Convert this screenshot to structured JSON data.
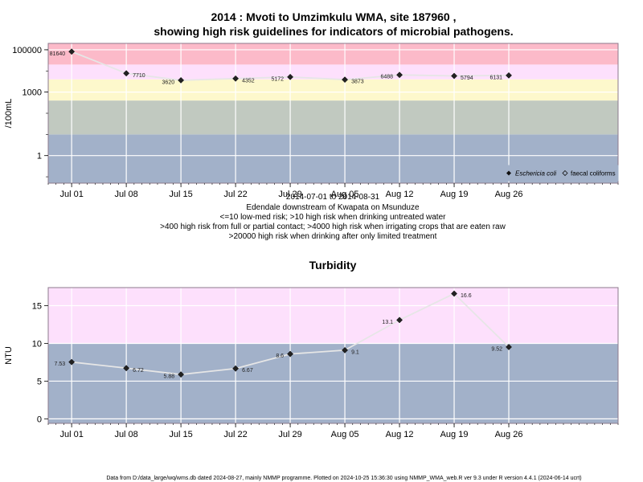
{
  "chart_data": [
    {
      "type": "line",
      "title_line1": "2014 : Mvoti to Umzimkulu WMA, site 187960 ,",
      "title_line2": "showing high risk guidelines for indicators of microbial pathogens.",
      "ylabel": "/100mL",
      "yscale": "log",
      "ylim": [
        0.05,
        200000
      ],
      "yticks": [
        {
          "v": 1,
          "label": "1"
        },
        {
          "v": 1000,
          "label": "1000"
        },
        {
          "v": 100000,
          "label": "100000"
        }
      ],
      "xlim": [
        "2014-06-28",
        "2014-09-09"
      ],
      "xticks": [
        {
          "date": "2014-07-01",
          "label": "Jul 01"
        },
        {
          "date": "2014-07-08",
          "label": "Jul 08"
        },
        {
          "date": "2014-07-15",
          "label": "Jul 15"
        },
        {
          "date": "2014-07-22",
          "label": "Jul 22"
        },
        {
          "date": "2014-07-29",
          "label": "Jul 29"
        },
        {
          "date": "2014-08-05",
          "label": "Aug 05"
        },
        {
          "date": "2014-08-12",
          "label": "Aug 12"
        },
        {
          "date": "2014-08-19",
          "label": "Aug 19"
        },
        {
          "date": "2014-08-26",
          "label": "Aug 26"
        }
      ],
      "bands": [
        {
          "from": 0.05,
          "to": 10,
          "color": "#a2b1c9"
        },
        {
          "from": 10,
          "to": 400,
          "color": "#c1c9c0"
        },
        {
          "from": 400,
          "to": 4000,
          "color": "#fdf8cc"
        },
        {
          "from": 4000,
          "to": 20000,
          "color": "#fde0fc"
        },
        {
          "from": 20000,
          "to": 200000,
          "color": "#fcbac9"
        }
      ],
      "series": [
        {
          "name": "Eschericia coli",
          "marker": "filled-diamond",
          "points": [
            {
              "date": "2014-07-01",
              "value": 81640,
              "label": "81640"
            },
            {
              "date": "2014-07-08",
              "value": 7710,
              "label": "7710"
            },
            {
              "date": "2014-07-15",
              "value": 3620,
              "label": "3620"
            },
            {
              "date": "2014-07-22",
              "value": 4352,
              "label": "4352"
            },
            {
              "date": "2014-07-29",
              "value": 5172,
              "label": "5172"
            },
            {
              "date": "2014-08-05",
              "value": 3873,
              "label": "3873"
            },
            {
              "date": "2014-08-12",
              "value": 6488,
              "label": "6488"
            },
            {
              "date": "2014-08-19",
              "value": 5794,
              "label": "5794"
            },
            {
              "date": "2014-08-26",
              "value": 6131,
              "label": "6131"
            }
          ]
        },
        {
          "name": "faecal coliforms",
          "marker": "open-diamond",
          "points": []
        }
      ],
      "legend_position": "bottom-right",
      "grid": true,
      "sub_lines": [
        "2014-07-01 to 2014-08-31",
        "Edendale downstream of Kwapata on Msunduze",
        "<=10 low-med risk; >10 high risk when drinking untreated water",
        ">400 high risk from full or partial contact; >4000 high risk when irrigating crops that are eaten raw",
        ">20000 high risk when drinking after only limited treatment"
      ]
    },
    {
      "type": "line",
      "title": "Turbidity",
      "ylabel": "NTU",
      "yscale": "linear",
      "ylim": [
        -0.6,
        17.4
      ],
      "yticks": [
        {
          "v": 0,
          "label": "0"
        },
        {
          "v": 5,
          "label": "5"
        },
        {
          "v": 10,
          "label": "10"
        },
        {
          "v": 15,
          "label": "15"
        }
      ],
      "xlim": [
        "2014-06-28",
        "2014-09-09"
      ],
      "xticks": [
        {
          "date": "2014-07-01",
          "label": "Jul 01"
        },
        {
          "date": "2014-07-08",
          "label": "Jul 08"
        },
        {
          "date": "2014-07-15",
          "label": "Jul 15"
        },
        {
          "date": "2014-07-22",
          "label": "Jul 22"
        },
        {
          "date": "2014-07-29",
          "label": "Jul 29"
        },
        {
          "date": "2014-08-05",
          "label": "Aug 05"
        },
        {
          "date": "2014-08-12",
          "label": "Aug 12"
        },
        {
          "date": "2014-08-19",
          "label": "Aug 19"
        },
        {
          "date": "2014-08-26",
          "label": "Aug 26"
        }
      ],
      "bands": [
        {
          "from": -0.6,
          "to": 10,
          "color": "#a2b1c9"
        },
        {
          "from": 10,
          "to": 17.4,
          "color": "#fde0fc"
        }
      ],
      "series": [
        {
          "marker": "filled-diamond",
          "points": [
            {
              "date": "2014-07-01",
              "value": 7.53,
              "label": "7.53"
            },
            {
              "date": "2014-07-08",
              "value": 6.72,
              "label": "6.72"
            },
            {
              "date": "2014-07-15",
              "value": 5.88,
              "label": "5.88"
            },
            {
              "date": "2014-07-22",
              "value": 6.67,
              "label": "6.67"
            },
            {
              "date": "2014-07-29",
              "value": 8.6,
              "label": "8.6"
            },
            {
              "date": "2014-08-05",
              "value": 9.1,
              "label": "9.1"
            },
            {
              "date": "2014-08-12",
              "value": 13.1,
              "label": "13.1"
            },
            {
              "date": "2014-08-19",
              "value": 16.6,
              "label": "16.6"
            },
            {
              "date": "2014-08-26",
              "value": 9.52,
              "label": "9.52"
            }
          ]
        }
      ],
      "grid": true
    }
  ],
  "footer": "Data from D:/data_large/wq/wms.db dated 2024-08-27, mainly NMMP programme. Plotted on 2024-10-25 15:36:30 using NMMP_WMA_web.R ver 9.3 under R version 4.4.1 (2024-06-14 ucrt)",
  "colors": {
    "line": "#e6e6e6",
    "marker": "#222222",
    "grid": "#ffffff",
    "frame": "#8c7a8c"
  }
}
